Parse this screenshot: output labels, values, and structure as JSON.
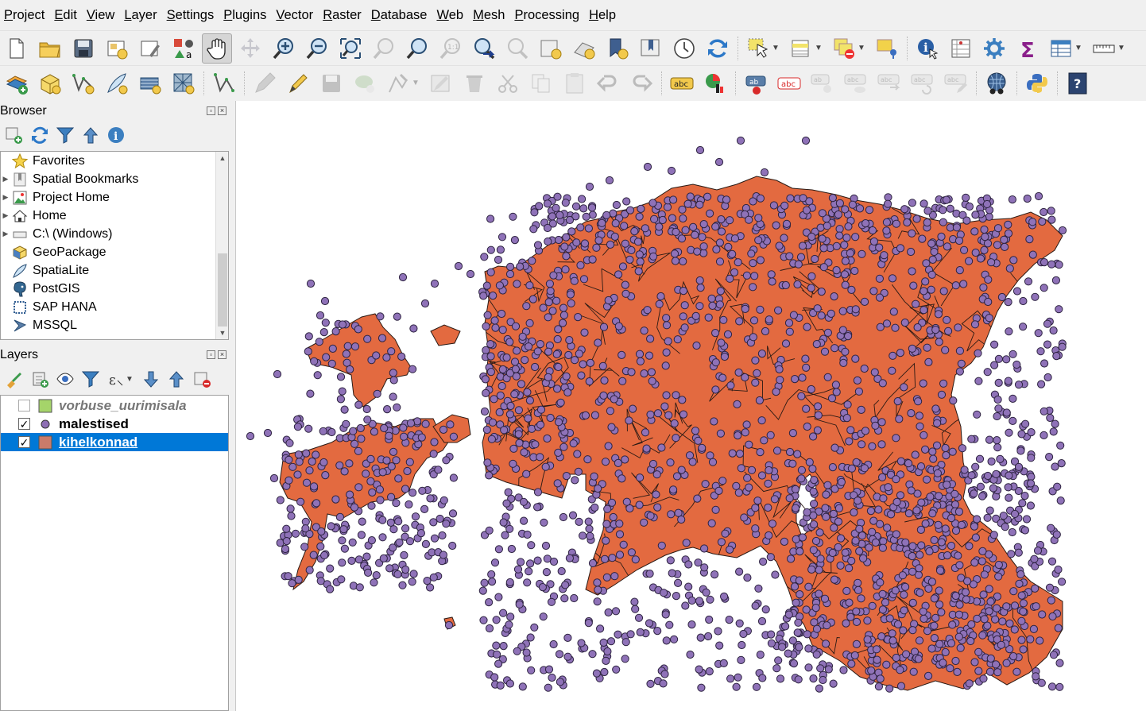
{
  "menubar": {
    "items": [
      "Project",
      "Edit",
      "View",
      "Layer",
      "Settings",
      "Plugins",
      "Vector",
      "Raster",
      "Database",
      "Web",
      "Mesh",
      "Processing",
      "Help"
    ]
  },
  "toolbar1": {
    "buttons": [
      "new-project-icon",
      "open-project-icon",
      "save-project-icon",
      "new-print-layout-icon",
      "layout-manager-icon",
      "style-manager-icon",
      "pan-map-icon",
      "pan-to-selection-icon",
      "zoom-in-icon",
      "zoom-out-icon",
      "zoom-full-icon",
      "zoom-to-selection-icon",
      "zoom-to-layer-icon",
      "zoom-native-icon",
      "zoom-last-icon",
      "zoom-next-icon",
      "new-map-view-icon",
      "new-3d-view-icon",
      "new-bookmark-icon",
      "show-bookmarks-icon",
      "temporal-controller-icon",
      "refresh-icon",
      "select-features-icon",
      "open-attribute-table-icon",
      "deselect-icon",
      "select-by-location-icon",
      "identify-icon",
      "statistics-icon",
      "processing-toolbox-icon",
      "field-calculator-icon",
      "attribute-table-icon",
      "measure-line-icon"
    ]
  },
  "toolbar2": {
    "buttons": [
      "data-source-manager-icon",
      "new-geopackage-layer-icon",
      "new-shapefile-layer-icon",
      "new-spatialite-layer-icon",
      "new-virtual-layer-icon",
      "new-mesh-layer-icon",
      "digitize-icon",
      "current-edits-icon",
      "toggle-editing-icon",
      "save-edits-icon",
      "add-feature-icon",
      "vertex-tool-icon",
      "modify-attributes-icon",
      "delete-selected-icon",
      "cut-features-icon",
      "copy-features-icon",
      "paste-features-icon",
      "undo-icon",
      "redo-icon",
      "label-toolbar-icon",
      "diagram-icon",
      "highlight-pinned-label-icon",
      "pin-label-icon",
      "show-hide-label-icon",
      "move-label-icon",
      "rotate-label-icon",
      "change-label-icon",
      "plugin-icon",
      "python-console-icon",
      "help-icon"
    ],
    "label_abc": "abc"
  },
  "browser": {
    "title": "Browser",
    "items": [
      {
        "label": "Favorites",
        "icon": "star-icon",
        "expandable": false
      },
      {
        "label": "Spatial Bookmarks",
        "icon": "bookmarks-icon",
        "expandable": true
      },
      {
        "label": "Project Home",
        "icon": "project-home-icon",
        "expandable": true
      },
      {
        "label": "Home",
        "icon": "home-icon",
        "expandable": true
      },
      {
        "label": "C:\\ (Windows)",
        "icon": "drive-icon",
        "expandable": true
      },
      {
        "label": "GeoPackage",
        "icon": "geopackage-icon",
        "expandable": false
      },
      {
        "label": "SpatiaLite",
        "icon": "spatialite-icon",
        "expandable": false
      },
      {
        "label": "PostGIS",
        "icon": "postgis-icon",
        "expandable": false
      },
      {
        "label": "SAP HANA",
        "icon": "sap-hana-icon",
        "expandable": false
      },
      {
        "label": "MSSQL",
        "icon": "mssql-icon",
        "expandable": false
      }
    ]
  },
  "layers": {
    "title": "Layers",
    "items": [
      {
        "name": "vorbuse_uurimisala",
        "checked": false,
        "symbol_color": "#a5d46a",
        "symbol": "polygon",
        "style": "italic-bold-gray"
      },
      {
        "name": "malestised",
        "checked": true,
        "symbol_color": "#8e6fb4",
        "symbol": "point",
        "style": "bold"
      },
      {
        "name": "kihelkonnad",
        "checked": true,
        "symbol_color": "#c97b6a",
        "symbol": "polygon",
        "style": "selected"
      }
    ]
  },
  "map": {
    "fill_color": "#e36a40",
    "stroke_color": "#2a1a14",
    "point_color": "#8f72b8",
    "point_stroke": "#2d2340"
  },
  "colors": {
    "accent_selected": "#0078d7"
  }
}
